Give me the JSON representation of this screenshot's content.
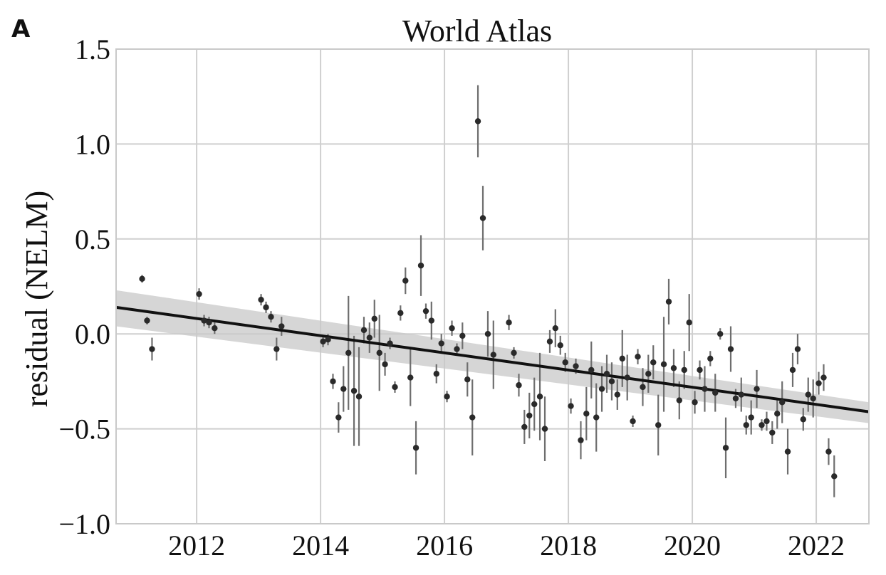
{
  "panel_label": "A",
  "chart_data": {
    "type": "scatter",
    "title": "World Atlas",
    "xlabel": "",
    "ylabel": "residual (NELM)",
    "xlim": [
      2010.7,
      2022.85
    ],
    "ylim": [
      -1.0,
      1.5
    ],
    "xticks": [
      2012,
      2014,
      2016,
      2018,
      2020,
      2022
    ],
    "xtick_labels": [
      "2012",
      "2014",
      "2016",
      "2018",
      "2020",
      "2022"
    ],
    "yticks": [
      -1.0,
      -0.5,
      0.0,
      0.5,
      1.0,
      1.5
    ],
    "ytick_labels": [
      "−1.0",
      "−0.5",
      "0.0",
      "0.5",
      "1.0",
      "1.5"
    ],
    "grid": true,
    "fit_line": {
      "x": [
        2010.7,
        2022.85
      ],
      "y": [
        0.14,
        -0.41
      ]
    },
    "confidence_band": {
      "x": [
        2010.7,
        2022.85
      ],
      "y_upper": [
        0.23,
        -0.36
      ],
      "y_lower": [
        0.04,
        -0.47
      ]
    },
    "points": [
      {
        "x": 2011.12,
        "y": 0.29,
        "err": 0.02
      },
      {
        "x": 2011.2,
        "y": 0.07,
        "err": 0.02
      },
      {
        "x": 2011.28,
        "y": -0.08,
        "err": 0.06
      },
      {
        "x": 2012.04,
        "y": 0.21,
        "err": 0.03
      },
      {
        "x": 2012.12,
        "y": 0.07,
        "err": 0.03
      },
      {
        "x": 2012.2,
        "y": 0.06,
        "err": 0.03
      },
      {
        "x": 2012.29,
        "y": 0.03,
        "err": 0.03
      },
      {
        "x": 2013.04,
        "y": 0.18,
        "err": 0.03
      },
      {
        "x": 2013.12,
        "y": 0.14,
        "err": 0.03
      },
      {
        "x": 2013.2,
        "y": 0.09,
        "err": 0.03
      },
      {
        "x": 2013.29,
        "y": -0.08,
        "err": 0.06
      },
      {
        "x": 2013.37,
        "y": 0.04,
        "err": 0.05
      },
      {
        "x": 2014.04,
        "y": -0.04,
        "err": 0.03
      },
      {
        "x": 2014.12,
        "y": -0.03,
        "err": 0.03
      },
      {
        "x": 2014.2,
        "y": -0.25,
        "err": 0.04
      },
      {
        "x": 2014.29,
        "y": -0.44,
        "err": 0.08
      },
      {
        "x": 2014.37,
        "y": -0.29,
        "err": 0.12
      },
      {
        "x": 2014.45,
        "y": -0.1,
        "err": 0.3
      },
      {
        "x": 2014.54,
        "y": -0.3,
        "err": 0.29
      },
      {
        "x": 2014.62,
        "y": -0.33,
        "err": 0.26
      },
      {
        "x": 2014.7,
        "y": 0.02,
        "err": 0.07
      },
      {
        "x": 2014.79,
        "y": -0.02,
        "err": 0.08
      },
      {
        "x": 2014.87,
        "y": 0.08,
        "err": 0.1
      },
      {
        "x": 2014.95,
        "y": -0.1,
        "err": 0.2
      },
      {
        "x": 2015.04,
        "y": -0.16,
        "err": 0.06
      },
      {
        "x": 2015.12,
        "y": -0.05,
        "err": 0.03
      },
      {
        "x": 2015.2,
        "y": -0.28,
        "err": 0.03
      },
      {
        "x": 2015.29,
        "y": 0.11,
        "err": 0.04
      },
      {
        "x": 2015.37,
        "y": 0.28,
        "err": 0.07
      },
      {
        "x": 2015.45,
        "y": -0.23,
        "err": 0.15
      },
      {
        "x": 2015.54,
        "y": -0.6,
        "err": 0.14
      },
      {
        "x": 2015.62,
        "y": 0.36,
        "err": 0.16
      },
      {
        "x": 2015.7,
        "y": 0.12,
        "err": 0.04
      },
      {
        "x": 2015.79,
        "y": 0.07,
        "err": 0.1
      },
      {
        "x": 2015.87,
        "y": -0.21,
        "err": 0.05
      },
      {
        "x": 2015.95,
        "y": -0.05,
        "err": 0.05
      },
      {
        "x": 2016.04,
        "y": -0.33,
        "err": 0.03
      },
      {
        "x": 2016.12,
        "y": 0.03,
        "err": 0.04
      },
      {
        "x": 2016.2,
        "y": -0.08,
        "err": 0.03
      },
      {
        "x": 2016.29,
        "y": -0.01,
        "err": 0.07
      },
      {
        "x": 2016.37,
        "y": -0.24,
        "err": 0.09
      },
      {
        "x": 2016.45,
        "y": -0.44,
        "err": 0.2
      },
      {
        "x": 2016.54,
        "y": 1.12,
        "err": 0.19
      },
      {
        "x": 2016.62,
        "y": 0.61,
        "err": 0.17
      },
      {
        "x": 2016.7,
        "y": 0.0,
        "err": 0.12
      },
      {
        "x": 2016.79,
        "y": -0.11,
        "err": 0.18
      },
      {
        "x": 2017.04,
        "y": 0.06,
        "err": 0.04
      },
      {
        "x": 2017.12,
        "y": -0.1,
        "err": 0.03
      },
      {
        "x": 2017.2,
        "y": -0.27,
        "err": 0.06
      },
      {
        "x": 2017.29,
        "y": -0.49,
        "err": 0.09
      },
      {
        "x": 2017.37,
        "y": -0.43,
        "err": 0.12
      },
      {
        "x": 2017.45,
        "y": -0.37,
        "err": 0.14
      },
      {
        "x": 2017.54,
        "y": -0.33,
        "err": 0.23
      },
      {
        "x": 2017.62,
        "y": -0.5,
        "err": 0.17
      },
      {
        "x": 2017.7,
        "y": -0.04,
        "err": 0.06
      },
      {
        "x": 2017.79,
        "y": 0.03,
        "err": 0.1
      },
      {
        "x": 2017.87,
        "y": -0.06,
        "err": 0.05
      },
      {
        "x": 2017.95,
        "y": -0.15,
        "err": 0.05
      },
      {
        "x": 2018.04,
        "y": -0.38,
        "err": 0.04
      },
      {
        "x": 2018.12,
        "y": -0.17,
        "err": 0.04
      },
      {
        "x": 2018.2,
        "y": -0.56,
        "err": 0.1
      },
      {
        "x": 2018.29,
        "y": -0.42,
        "err": 0.14
      },
      {
        "x": 2018.37,
        "y": -0.19,
        "err": 0.15
      },
      {
        "x": 2018.45,
        "y": -0.44,
        "err": 0.18
      },
      {
        "x": 2018.54,
        "y": -0.29,
        "err": 0.12
      },
      {
        "x": 2018.62,
        "y": -0.21,
        "err": 0.1
      },
      {
        "x": 2018.7,
        "y": -0.25,
        "err": 0.1
      },
      {
        "x": 2018.79,
        "y": -0.32,
        "err": 0.08
      },
      {
        "x": 2018.87,
        "y": -0.13,
        "err": 0.15
      },
      {
        "x": 2018.95,
        "y": -0.23,
        "err": 0.12
      },
      {
        "x": 2019.04,
        "y": -0.46,
        "err": 0.03
      },
      {
        "x": 2019.12,
        "y": -0.12,
        "err": 0.04
      },
      {
        "x": 2019.2,
        "y": -0.28,
        "err": 0.1
      },
      {
        "x": 2019.29,
        "y": -0.21,
        "err": 0.1
      },
      {
        "x": 2019.37,
        "y": -0.15,
        "err": 0.09
      },
      {
        "x": 2019.45,
        "y": -0.48,
        "err": 0.16
      },
      {
        "x": 2019.54,
        "y": -0.16,
        "err": 0.25
      },
      {
        "x": 2019.62,
        "y": 0.17,
        "err": 0.12
      },
      {
        "x": 2019.7,
        "y": -0.18,
        "err": 0.1
      },
      {
        "x": 2019.79,
        "y": -0.35,
        "err": 0.1
      },
      {
        "x": 2019.87,
        "y": -0.19,
        "err": 0.1
      },
      {
        "x": 2019.95,
        "y": 0.06,
        "err": 0.15
      },
      {
        "x": 2020.04,
        "y": -0.36,
        "err": 0.06
      },
      {
        "x": 2020.12,
        "y": -0.19,
        "err": 0.05
      },
      {
        "x": 2020.2,
        "y": -0.29,
        "err": 0.12
      },
      {
        "x": 2020.29,
        "y": -0.13,
        "err": 0.04
      },
      {
        "x": 2020.37,
        "y": -0.31,
        "err": 0.1
      },
      {
        "x": 2020.45,
        "y": 0.0,
        "err": 0.03
      },
      {
        "x": 2020.54,
        "y": -0.6,
        "err": 0.16
      },
      {
        "x": 2020.62,
        "y": -0.08,
        "err": 0.12
      },
      {
        "x": 2020.7,
        "y": -0.34,
        "err": 0.05
      },
      {
        "x": 2020.79,
        "y": -0.32,
        "err": 0.09
      },
      {
        "x": 2020.87,
        "y": -0.48,
        "err": 0.05
      },
      {
        "x": 2020.95,
        "y": -0.44,
        "err": 0.09
      },
      {
        "x": 2021.04,
        "y": -0.29,
        "err": 0.1
      },
      {
        "x": 2021.12,
        "y": -0.48,
        "err": 0.03
      },
      {
        "x": 2021.2,
        "y": -0.46,
        "err": 0.05
      },
      {
        "x": 2021.29,
        "y": -0.52,
        "err": 0.06
      },
      {
        "x": 2021.37,
        "y": -0.42,
        "err": 0.08
      },
      {
        "x": 2021.45,
        "y": -0.36,
        "err": 0.11
      },
      {
        "x": 2021.54,
        "y": -0.62,
        "err": 0.12
      },
      {
        "x": 2021.62,
        "y": -0.19,
        "err": 0.09
      },
      {
        "x": 2021.7,
        "y": -0.08,
        "err": 0.08
      },
      {
        "x": 2021.79,
        "y": -0.45,
        "err": 0.06
      },
      {
        "x": 2021.87,
        "y": -0.32,
        "err": 0.09
      },
      {
        "x": 2021.95,
        "y": -0.34,
        "err": 0.1
      },
      {
        "x": 2022.04,
        "y": -0.26,
        "err": 0.06
      },
      {
        "x": 2022.12,
        "y": -0.23,
        "err": 0.07
      },
      {
        "x": 2022.2,
        "y": -0.62,
        "err": 0.07
      },
      {
        "x": 2022.29,
        "y": -0.75,
        "err": 0.11
      }
    ]
  }
}
